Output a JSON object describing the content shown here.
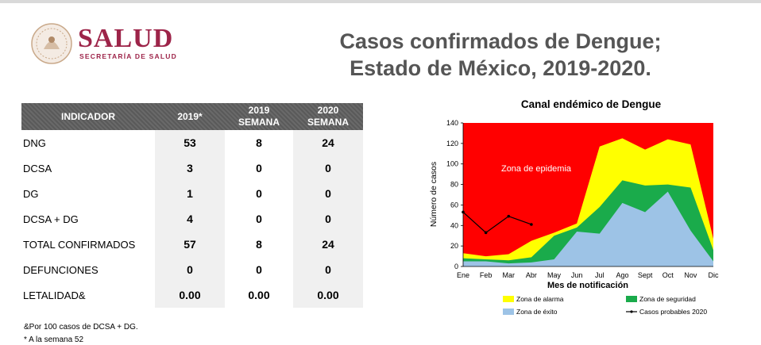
{
  "header": {
    "logo_title": "SALUD",
    "logo_subtitle": "SECRETARÍA DE SALUD",
    "title_line1": "Casos confirmados de Dengue;",
    "title_line2": "Estado de México, 2019-2020."
  },
  "table": {
    "headers": [
      "INDICADOR",
      "2019*",
      "2019\nSEMANA",
      "2020\nSEMANA"
    ],
    "header_lines": {
      "h0": "INDICADOR",
      "h1": "2019*",
      "h2a": "2019",
      "h2b": "SEMANA",
      "h3a": "2020",
      "h3b": "SEMANA"
    },
    "rows": [
      {
        "label": "DNG",
        "y2019": "53",
        "s2019": "8",
        "s2020": "24"
      },
      {
        "label": "DCSA",
        "y2019": "3",
        "s2019": "0",
        "s2020": "0"
      },
      {
        "label": "DG",
        "y2019": "1",
        "s2019": "0",
        "s2020": "0"
      },
      {
        "label": "DCSA + DG",
        "y2019": "4",
        "s2019": "0",
        "s2020": "0"
      },
      {
        "label": "TOTAL CONFIRMADOS",
        "y2019": "57",
        "s2019": "8",
        "s2020": "24"
      },
      {
        "label": "DEFUNCIONES",
        "y2019": "0",
        "s2019": "0",
        "s2020": "0"
      },
      {
        "label": "LETALIDAD&",
        "y2019": "0.00",
        "s2019": "0.00",
        "s2020": "0.00"
      }
    ]
  },
  "footnotes": {
    "note1": "&Por 100 casos de DCSA + DG.",
    "note2": "* A la semana 52"
  },
  "colors": {
    "epidemia": "#ff0000",
    "alarma": "#ffff00",
    "seguridad": "#1aab4b",
    "exito": "#9dc3e6",
    "casos": "#000000",
    "brand": "#9d2449"
  },
  "chart_data": {
    "type": "area",
    "title": "Canal endémico de Dengue",
    "xlabel": "Mes de notificación",
    "ylabel": "Número de casos",
    "categories": [
      "Ene",
      "Feb",
      "Mar",
      "Abr",
      "May",
      "Jun",
      "Jul",
      "Ago",
      "Sept",
      "Oct",
      "Nov",
      "Dic"
    ],
    "ylim": [
      0,
      140
    ],
    "yticks": [
      0,
      20,
      40,
      60,
      80,
      100,
      120,
      140
    ],
    "annotation": "Zona de epidemia",
    "series": [
      {
        "name": "Zona de alarma",
        "values": [
          13,
          10,
          12,
          25,
          33,
          42,
          117,
          125,
          114,
          124,
          119,
          27
        ]
      },
      {
        "name": "Zona de seguridad",
        "values": [
          8,
          7,
          6,
          9,
          30,
          38,
          58,
          84,
          79,
          80,
          77,
          16
        ]
      },
      {
        "name": "Zona de éxito",
        "values": [
          5,
          5,
          3,
          4,
          7,
          34,
          32,
          62,
          53,
          73,
          35,
          5
        ]
      },
      {
        "name": "Casos probables 2020",
        "values": [
          53,
          33,
          49,
          41,
          null,
          null,
          null,
          null,
          null,
          null,
          null,
          null
        ]
      }
    ],
    "legend": [
      "Zona de alarma",
      "Zona de seguridad",
      "Zona de éxito",
      "Casos probables 2020"
    ],
    "legend_position": "bottom"
  }
}
